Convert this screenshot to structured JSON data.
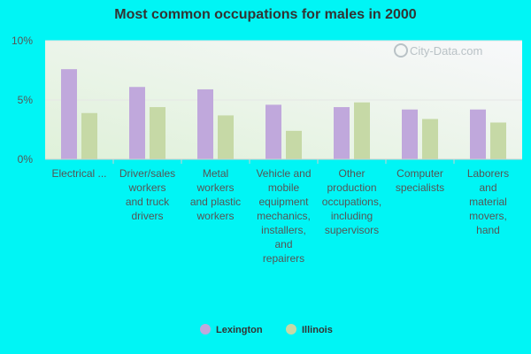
{
  "chart_data": {
    "type": "bar",
    "title": "Most common occupations for males in 2000",
    "xlabel": "",
    "ylabel": "",
    "ylim": [
      0,
      10
    ],
    "yticks": [
      "0%",
      "5%",
      "10%"
    ],
    "ytick_values": [
      0,
      5,
      10
    ],
    "grid": true,
    "legend_position": "bottom",
    "categories": [
      "Electrical ...",
      "Driver/sales workers and truck drivers",
      "Metal workers and plastic workers",
      "Vehicle and mobile equipment mechanics, installers, and repairers",
      "Other production occupations, including supervisors",
      "Computer specialists",
      "Laborers and material movers, hand"
    ],
    "category_lines": [
      [
        "Electrical ..."
      ],
      [
        "Driver/sales",
        "workers",
        "and truck",
        "drivers"
      ],
      [
        "Metal",
        "workers",
        "and plastic",
        "workers"
      ],
      [
        "Vehicle and",
        "mobile",
        "equipment",
        "mechanics,",
        "installers,",
        "and",
        "repairers"
      ],
      [
        "Other",
        "production",
        "occupations,",
        "including",
        "supervisors"
      ],
      [
        "Computer",
        "specialists"
      ],
      [
        "Laborers",
        "and",
        "material",
        "movers,",
        "hand"
      ]
    ],
    "series": [
      {
        "name": "Lexington",
        "color": "#c0a8dc",
        "values": [
          7.6,
          6.1,
          5.9,
          4.6,
          4.4,
          4.2,
          4.2
        ]
      },
      {
        "name": "Illinois",
        "color": "#c6d9a6",
        "values": [
          3.9,
          4.4,
          3.7,
          2.4,
          4.8,
          3.4,
          3.1
        ]
      }
    ]
  },
  "watermark": "City-Data.com"
}
